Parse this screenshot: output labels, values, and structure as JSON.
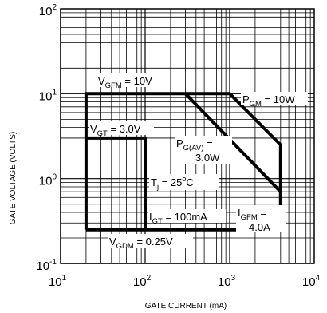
{
  "chart_data": {
    "type": "line",
    "xlabel": "GATE CURRENT (mA)",
    "ylabel": "GATE VOLTAGE (VOLTS)",
    "x_scale": "log",
    "y_scale": "log",
    "xlim": [
      10,
      10000
    ],
    "ylim": [
      0.1,
      100
    ],
    "grid": true,
    "x_ticks": [
      {
        "base": "10",
        "exp": "1",
        "value": 10
      },
      {
        "base": "10",
        "exp": "2",
        "value": 100
      },
      {
        "base": "10",
        "exp": "3",
        "value": 1000
      },
      {
        "base": "10",
        "exp": "4",
        "value": 10000
      }
    ],
    "y_ticks": [
      {
        "base": "10",
        "exp": "-1",
        "value": 0.1
      },
      {
        "base": "10",
        "exp": "0",
        "value": 1
      },
      {
        "base": "10",
        "exp": "1",
        "value": 10
      },
      {
        "base": "10",
        "exp": "2",
        "value": 100
      }
    ],
    "series": [
      {
        "id": "outer_boundary",
        "points": [
          [
            20,
            0.25
          ],
          [
            20,
            10
          ],
          [
            1000,
            10
          ],
          [
            4000,
            2.5
          ],
          [
            4000,
            0.25
          ],
          [
            20,
            0.25
          ]
        ]
      },
      {
        "id": "pgav_line",
        "points": [
          [
            300,
            10
          ],
          [
            4000,
            0.7
          ]
        ]
      },
      {
        "id": "inner_box",
        "points": [
          [
            20,
            3
          ],
          [
            100,
            3
          ],
          [
            100,
            0.25
          ]
        ]
      }
    ],
    "annotations": [
      {
        "id": "vgfm",
        "main": "V",
        "sub": "GFM",
        "rest": " = 10V"
      },
      {
        "id": "pgm",
        "main": "P",
        "sub": "GM",
        "rest": " = 10W"
      },
      {
        "id": "vgt",
        "main": "V",
        "sub": "GT",
        "rest": " = 3.0V"
      },
      {
        "id": "pgav",
        "main": "P",
        "sub": "G(AV)",
        "rest": " =",
        "line2": "3.0W"
      },
      {
        "id": "tj",
        "main": "T",
        "sub": "j",
        "mid": " = 25",
        "sup": "o",
        "rest": "C"
      },
      {
        "id": "igt",
        "main": "I",
        "sub": "GT",
        "rest": " = 100mA"
      },
      {
        "id": "igfm",
        "main": "I",
        "sub": "GFM",
        "rest": " =",
        "line2": "4.0A"
      },
      {
        "id": "vgdm",
        "main": "V",
        "sub": "GDM",
        "rest": " = 0.25V"
      }
    ],
    "colors": {
      "line": "#000000",
      "grid": "#000000",
      "background": "#ffffff"
    }
  }
}
